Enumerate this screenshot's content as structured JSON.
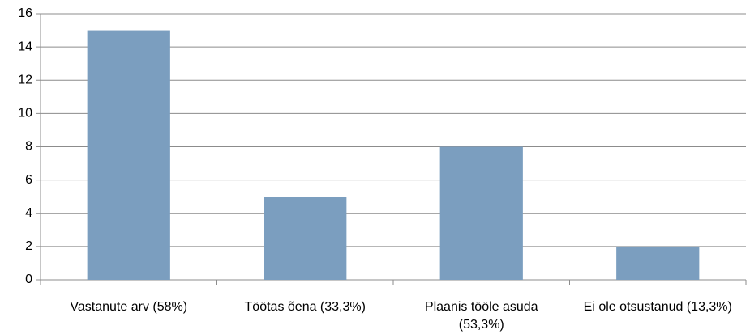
{
  "chart_data": {
    "type": "bar",
    "categories": [
      "Vastanute arv (58%)",
      "Töötas õena (33,3%)",
      "Plaanis tööle asuda (53,3%)",
      "Ei ole otsustanud (13,3%)"
    ],
    "values": [
      15,
      5,
      8,
      2
    ],
    "color": "#7b9ebf",
    "ylim": [
      0,
      16
    ],
    "yticks": [
      0,
      2,
      4,
      6,
      8,
      10,
      12,
      14,
      16
    ],
    "grid": true
  }
}
